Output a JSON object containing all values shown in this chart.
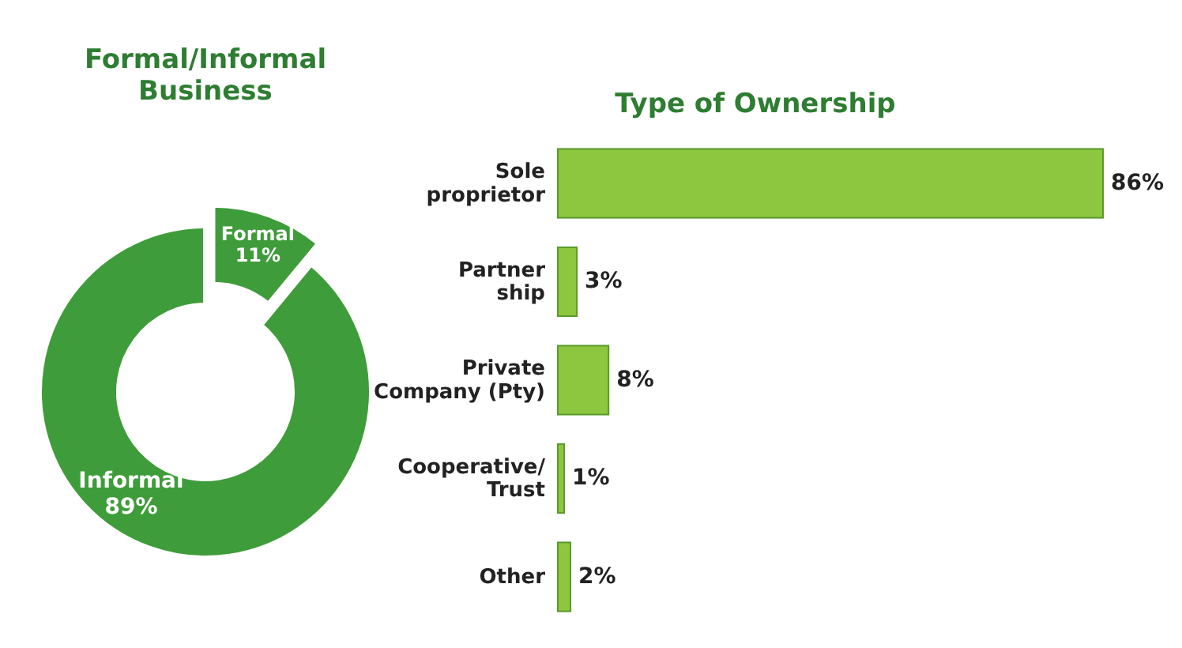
{
  "chart_data": [
    {
      "type": "donut",
      "title": "Formal/Informal\nBusiness",
      "categories": [
        "Formal",
        "Informal"
      ],
      "values": [
        11,
        89
      ],
      "colors": [
        "#3f9c3a",
        "#3f9c3a"
      ],
      "value_labels": [
        "11%",
        "89%"
      ]
    },
    {
      "type": "bar",
      "orientation": "horizontal",
      "xlim": [
        0,
        86
      ],
      "title": "Type of Ownership",
      "categories": [
        "Sole\nproprietor",
        "Partner\nship",
        "Private\nCompany (Pty)",
        "Cooperative/\nTrust",
        "Other"
      ],
      "values": [
        86,
        3,
        8,
        1,
        2
      ],
      "color": "#8dc63f",
      "value_labels": [
        "86%",
        "3%",
        "8%",
        "1%",
        "2%"
      ]
    }
  ]
}
